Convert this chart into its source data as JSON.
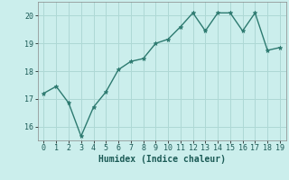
{
  "x": [
    0,
    1,
    2,
    3,
    4,
    5,
    6,
    7,
    8,
    9,
    10,
    11,
    12,
    13,
    14,
    15,
    16,
    17,
    18,
    19
  ],
  "y": [
    17.2,
    17.45,
    16.85,
    15.65,
    16.7,
    17.25,
    18.05,
    18.35,
    18.45,
    19.0,
    19.15,
    19.6,
    20.1,
    19.45,
    20.1,
    20.1,
    19.45,
    20.1,
    18.75,
    18.85
  ],
  "line_color": "#2d7a70",
  "marker": "*",
  "marker_size": 3.5,
  "background_color": "#cbeeec",
  "grid_color": "#aed8d5",
  "xlabel": "Humidex (Indice chaleur)",
  "ylim": [
    15.5,
    20.5
  ],
  "xlim": [
    -0.5,
    19.5
  ],
  "yticks": [
    16,
    17,
    18,
    19,
    20
  ],
  "xticks": [
    0,
    1,
    2,
    3,
    4,
    5,
    6,
    7,
    8,
    9,
    10,
    11,
    12,
    13,
    14,
    15,
    16,
    17,
    18,
    19
  ]
}
